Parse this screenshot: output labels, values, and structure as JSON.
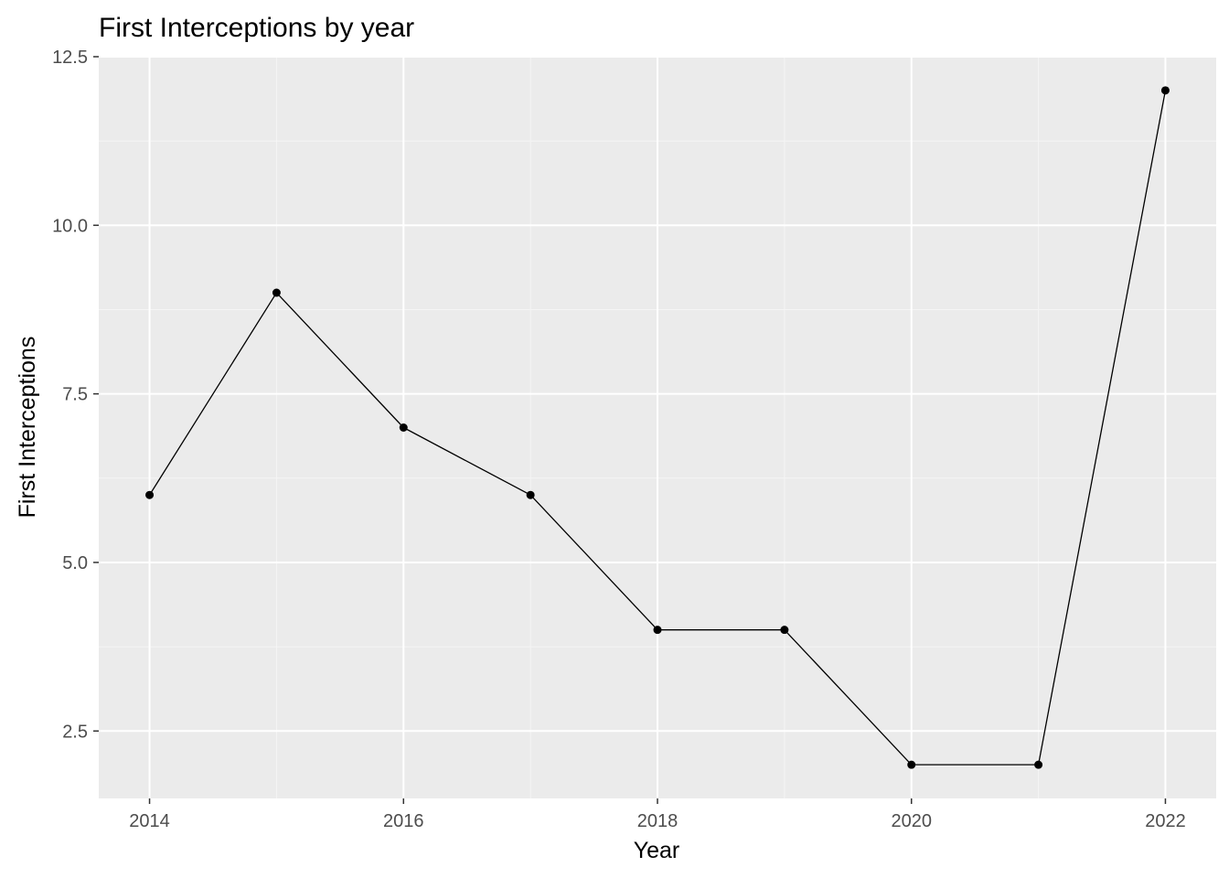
{
  "chart_data": {
    "type": "line",
    "title": "First Interceptions by year",
    "xlabel": "Year",
    "ylabel": "First Interceptions",
    "x": [
      2014,
      2015,
      2016,
      2017,
      2018,
      2019,
      2020,
      2021,
      2022
    ],
    "series": [
      {
        "values": [
          6,
          9,
          7,
          6,
          4,
          4,
          2,
          2,
          12
        ]
      }
    ],
    "xlim": [
      2013.6,
      2022.4
    ],
    "ylim": [
      1.5,
      12.5
    ],
    "x_ticks": [
      2014,
      2016,
      2018,
      2020,
      2022
    ],
    "x_tick_labels": [
      "2014",
      "2016",
      "2018",
      "2020",
      "2022"
    ],
    "y_ticks": [
      2.5,
      5.0,
      7.5,
      10.0,
      12.5
    ],
    "y_tick_labels": [
      "2.5",
      "5.0",
      "7.5",
      "10.0",
      "12.5"
    ],
    "grid": true,
    "legend": "none",
    "colors": {
      "panel_background": "#ebebeb",
      "grid_major": "#ffffff",
      "grid_minor": "#f5f5f5",
      "line": "#000000",
      "point": "#000000",
      "tick_text": "#4d4d4d",
      "tick_mark": "#333333"
    }
  }
}
